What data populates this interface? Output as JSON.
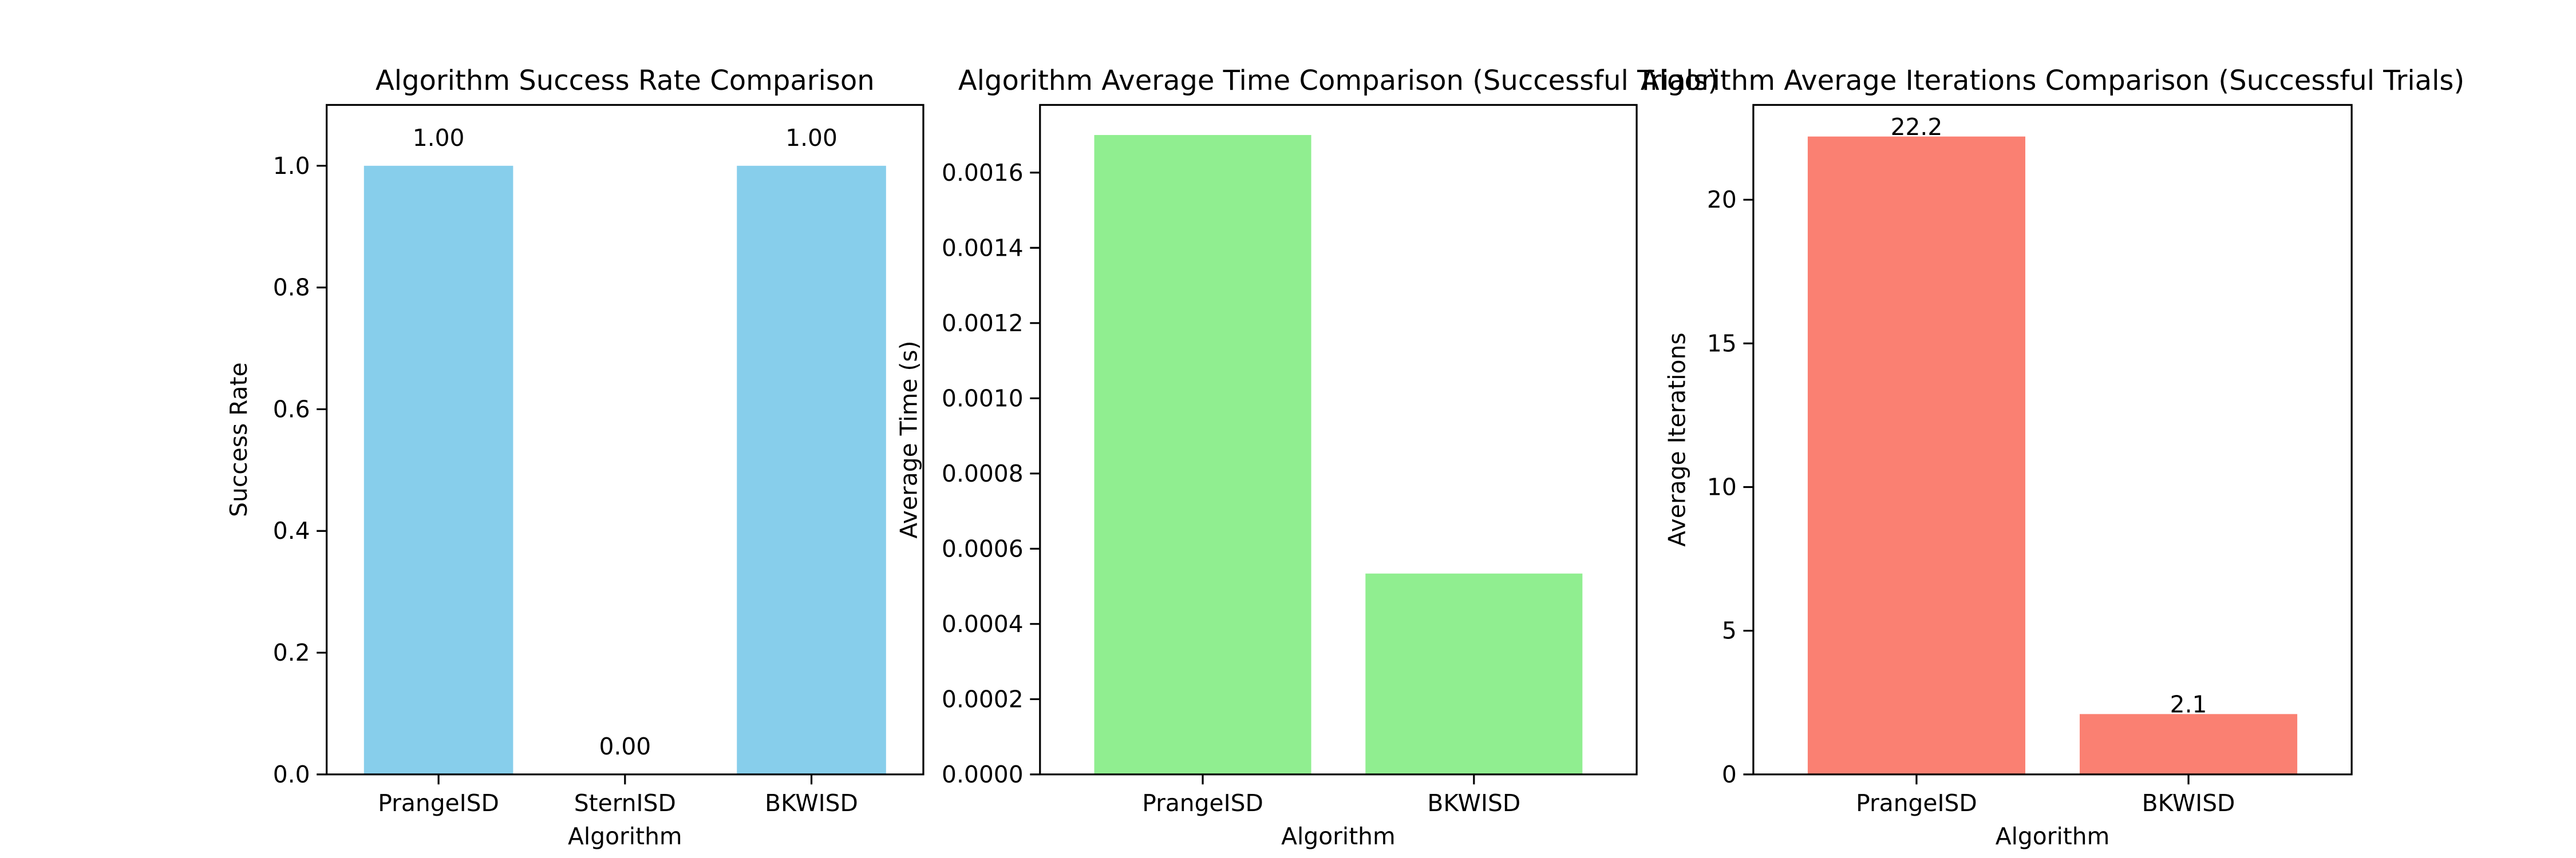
{
  "chart_data": [
    {
      "type": "bar",
      "title": "Algorithm Success Rate Comparison",
      "xlabel": "Algorithm",
      "ylabel": "Success Rate",
      "categories": [
        "PrangeISD",
        "SternISD",
        "BKWISD"
      ],
      "values": [
        1.0,
        0.0,
        1.0
      ],
      "value_labels": [
        "1.00",
        "0.00",
        "1.00"
      ],
      "ylim": [
        0,
        1.1
      ],
      "yticks": [
        0.0,
        0.2,
        0.4,
        0.6,
        0.8,
        1.0
      ],
      "ytick_labels": [
        "0.0",
        "0.2",
        "0.4",
        "0.6",
        "0.8",
        "1.0"
      ],
      "color": "#87ceeb",
      "grid": false
    },
    {
      "type": "bar",
      "title": "Algorithm Average Time Comparison (Successful Trials)",
      "xlabel": "Algorithm",
      "ylabel": "Average Time (s)",
      "categories": [
        "PrangeISD",
        "BKWISD"
      ],
      "values": [
        0.0017,
        0.000534
      ],
      "value_labels": [],
      "ylim": [
        0,
        0.00178
      ],
      "yticks": [
        0,
        0.0002,
        0.0004,
        0.0006,
        0.0008,
        0.001,
        0.0012,
        0.0014,
        0.0016
      ],
      "ytick_labels": [
        "0.0000",
        "0.0002",
        "0.0004",
        "0.0006",
        "0.0008",
        "0.0010",
        "0.0012",
        "0.0014",
        "0.0016"
      ],
      "color": "#90ee90",
      "grid": false
    },
    {
      "type": "bar",
      "title": "Algorithm Average Iterations Comparison (Successful Trials)",
      "xlabel": "Algorithm",
      "ylabel": "Average Iterations",
      "categories": [
        "PrangeISD",
        "BKWISD"
      ],
      "values": [
        22.2,
        2.1
      ],
      "value_labels": [
        "22.2",
        "2.1"
      ],
      "ylim": [
        0,
        23.3
      ],
      "yticks": [
        0,
        5,
        10,
        15,
        20
      ],
      "ytick_labels": [
        "0",
        "5",
        "10",
        "15",
        "20"
      ],
      "color": "#fa8072",
      "grid": false
    }
  ]
}
